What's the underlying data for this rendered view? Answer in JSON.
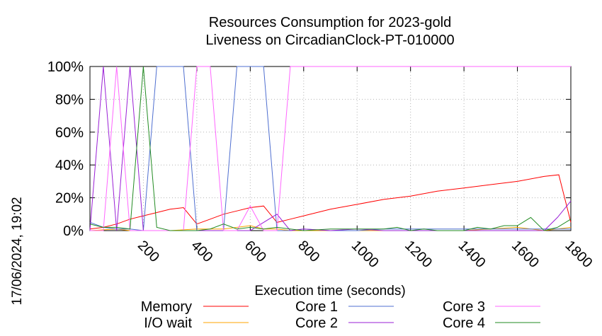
{
  "chart_data": {
    "type": "line",
    "title_lines": [
      "Resources Consumption for 2023-gold",
      "Liveness on CircadianClock-PT-010000"
    ],
    "xlabel": "Execution time (seconds)",
    "ylabel": "",
    "timestamp": "17/06/2024, 19:02",
    "xlim": [
      0,
      1800
    ],
    "ylim": [
      0,
      100
    ],
    "x_ticks": [
      "200",
      "400",
      "600",
      "800",
      "1000",
      "1200",
      "1400",
      "1600",
      "1800"
    ],
    "x_tick_values": [
      200,
      400,
      600,
      800,
      1000,
      1200,
      1400,
      1600,
      1800
    ],
    "y_ticks": [
      "0%",
      "20%",
      "40%",
      "60%",
      "80%",
      "100%"
    ],
    "y_tick_values": [
      0,
      20,
      40,
      60,
      80,
      100
    ],
    "grid": true,
    "legend_position": "bottom",
    "series": [
      {
        "name": "Memory",
        "color": "#ff0000",
        "points": [
          [
            0,
            1
          ],
          [
            50,
            2
          ],
          [
            100,
            4
          ],
          [
            150,
            7
          ],
          [
            200,
            9
          ],
          [
            250,
            11
          ],
          [
            300,
            13
          ],
          [
            350,
            14
          ],
          [
            400,
            4
          ],
          [
            450,
            7
          ],
          [
            500,
            10
          ],
          [
            550,
            12
          ],
          [
            600,
            14
          ],
          [
            650,
            15
          ],
          [
            700,
            5
          ],
          [
            750,
            7
          ],
          [
            800,
            9
          ],
          [
            900,
            13
          ],
          [
            1000,
            16
          ],
          [
            1100,
            19
          ],
          [
            1200,
            21
          ],
          [
            1300,
            24
          ],
          [
            1400,
            26
          ],
          [
            1500,
            28
          ],
          [
            1600,
            30
          ],
          [
            1700,
            33
          ],
          [
            1755,
            34
          ],
          [
            1800,
            5
          ]
        ]
      },
      {
        "name": "I/O wait",
        "color": "#ffa500",
        "points": [
          [
            0,
            0
          ],
          [
            100,
            1
          ],
          [
            150,
            0
          ],
          [
            300,
            0
          ],
          [
            400,
            1
          ],
          [
            500,
            1
          ],
          [
            600,
            3
          ],
          [
            650,
            1
          ],
          [
            700,
            1
          ],
          [
            750,
            0
          ],
          [
            1000,
            0
          ],
          [
            1400,
            0
          ],
          [
            1500,
            1
          ],
          [
            1600,
            2
          ],
          [
            1700,
            0
          ],
          [
            1800,
            2
          ]
        ]
      },
      {
        "name": "Core 1",
        "color": "#4f6fd0",
        "points": [
          [
            0,
            5
          ],
          [
            50,
            2
          ],
          [
            100,
            1
          ],
          [
            150,
            1
          ],
          [
            200,
            0
          ],
          [
            250,
            100
          ],
          [
            300,
            100
          ],
          [
            350,
            100
          ],
          [
            400,
            0
          ],
          [
            450,
            0
          ],
          [
            500,
            0
          ],
          [
            550,
            100
          ],
          [
            600,
            100
          ],
          [
            650,
            100
          ],
          [
            700,
            0
          ],
          [
            750,
            0
          ],
          [
            800,
            1
          ],
          [
            900,
            0
          ],
          [
            1000,
            0
          ],
          [
            1100,
            1
          ],
          [
            1800,
            1
          ]
        ]
      },
      {
        "name": "Core 2",
        "color": "#9a1fd6",
        "points": [
          [
            0,
            0
          ],
          [
            50,
            100
          ],
          [
            100,
            0
          ],
          [
            150,
            100
          ],
          [
            200,
            0
          ],
          [
            250,
            0
          ],
          [
            300,
            0
          ],
          [
            400,
            0
          ],
          [
            500,
            0
          ],
          [
            600,
            0
          ],
          [
            700,
            10
          ],
          [
            750,
            0
          ],
          [
            800,
            1
          ],
          [
            900,
            0
          ],
          [
            1000,
            1
          ],
          [
            1100,
            0
          ],
          [
            1200,
            0
          ],
          [
            1300,
            0
          ],
          [
            1700,
            0
          ],
          [
            1750,
            8
          ],
          [
            1800,
            18
          ]
        ]
      },
      {
        "name": "Core 3",
        "color": "#ff66ff",
        "points": [
          [
            0,
            0
          ],
          [
            50,
            0
          ],
          [
            100,
            100
          ],
          [
            150,
            0
          ],
          [
            200,
            0
          ],
          [
            250,
            0
          ],
          [
            300,
            0
          ],
          [
            350,
            0
          ],
          [
            400,
            100
          ],
          [
            450,
            100
          ],
          [
            500,
            0
          ],
          [
            550,
            0
          ],
          [
            600,
            15
          ],
          [
            650,
            0
          ],
          [
            700,
            0
          ],
          [
            750,
            100
          ],
          [
            800,
            100
          ],
          [
            1000,
            100
          ],
          [
            1200,
            100
          ],
          [
            1400,
            100
          ],
          [
            1600,
            100
          ],
          [
            1800,
            100
          ]
        ]
      },
      {
        "name": "Core 4",
        "color": "#228b22",
        "points": [
          [
            0,
            4
          ],
          [
            50,
            2
          ],
          [
            100,
            2
          ],
          [
            150,
            1
          ],
          [
            200,
            100
          ],
          [
            250,
            2
          ],
          [
            300,
            0
          ],
          [
            350,
            0
          ],
          [
            400,
            0
          ],
          [
            450,
            1
          ],
          [
            500,
            4
          ],
          [
            550,
            1
          ],
          [
            600,
            2
          ],
          [
            650,
            1
          ],
          [
            700,
            2
          ],
          [
            750,
            1
          ],
          [
            800,
            0
          ],
          [
            900,
            1
          ],
          [
            1000,
            1
          ],
          [
            1100,
            1
          ],
          [
            1150,
            2
          ],
          [
            1200,
            0
          ],
          [
            1250,
            1
          ],
          [
            1300,
            0
          ],
          [
            1400,
            0
          ],
          [
            1450,
            2
          ],
          [
            1500,
            1
          ],
          [
            1550,
            3
          ],
          [
            1600,
            3
          ],
          [
            1650,
            8
          ],
          [
            1700,
            0
          ],
          [
            1750,
            2
          ],
          [
            1800,
            7
          ]
        ]
      }
    ]
  }
}
